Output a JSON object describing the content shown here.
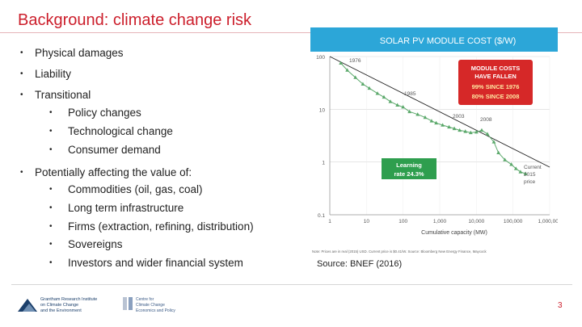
{
  "slide": {
    "title": "Background: climate change risk",
    "page_number": "3",
    "source": "Source: BNEF (2016)"
  },
  "bullets": [
    {
      "level": 1,
      "text": "Physical damages"
    },
    {
      "level": 1,
      "text": "Liability"
    },
    {
      "level": 1,
      "text": "Transitional"
    },
    {
      "level": 2,
      "text": "Policy changes"
    },
    {
      "level": 2,
      "text": "Technological change"
    },
    {
      "level": 2,
      "text": "Consumer demand"
    },
    {
      "level": 1,
      "text": "Potentially affecting the value of:"
    },
    {
      "level": 2,
      "text": "Commodities (oil, gas, coal)"
    },
    {
      "level": 2,
      "text": "Long term infrastructure"
    },
    {
      "level": 2,
      "text": "Firms (extraction, refining, distribution)"
    },
    {
      "level": 2,
      "text": "Sovereigns"
    },
    {
      "level": 2,
      "text": "Investors and wider financial system"
    }
  ],
  "figure": {
    "header": "SOLAR PV MODULE COST ($/W)",
    "header_bg": "#2ca6d8",
    "callout_lines": [
      "MODULE COSTS",
      "HAVE FALLEN",
      "99% SINCE 1976",
      "80% SINCE 2008"
    ],
    "callout_bg": "#d62828",
    "learning_lines": [
      "Learning",
      "rate 24.3%"
    ],
    "learning_bg": "#2e9e4e",
    "point_labels": [
      "1976",
      "1985",
      "2003",
      "2008",
      "Current",
      "2015",
      "price"
    ],
    "note": "Note: Prices are in real (2015) USD. Current price is $0.41/W. Source: Bloomberg New Energy Finance, Maycock",
    "series_color": "#5aa86a"
  },
  "chart_data": {
    "type": "scatter",
    "title": "SOLAR PV MODULE COST ($/W)",
    "xlabel": "Cumulative capacity (MW)",
    "ylabel": "",
    "xscale": "log",
    "yscale": "log",
    "xlim": [
      1,
      1000000
    ],
    "ylim": [
      0.1,
      100
    ],
    "x_ticks": [
      "1",
      "10",
      "100",
      "1,000",
      "10,000",
      "100,000",
      "1,000,000"
    ],
    "y_ticks": [
      "100",
      "10",
      "1",
      "0.1"
    ],
    "grid": true,
    "trendline": {
      "x": [
        1,
        1000000
      ],
      "y": [
        100,
        0.8
      ]
    },
    "series": [
      {
        "points": [
          [
            2,
            75
          ],
          [
            3,
            55
          ],
          [
            5,
            40
          ],
          [
            8,
            30
          ],
          [
            12,
            25
          ],
          [
            20,
            20
          ],
          [
            30,
            17
          ],
          [
            45,
            14
          ],
          [
            70,
            12
          ],
          [
            100,
            11
          ],
          [
            150,
            9
          ],
          [
            250,
            8
          ],
          [
            400,
            7
          ],
          [
            600,
            6
          ],
          [
            800,
            5.5
          ],
          [
            1200,
            5
          ],
          [
            1800,
            4.6
          ],
          [
            2500,
            4.3
          ],
          [
            3500,
            4.0
          ],
          [
            5000,
            3.8
          ],
          [
            7000,
            3.6
          ],
          [
            10000,
            3.7
          ],
          [
            14000,
            4.0
          ],
          [
            20000,
            3.4
          ],
          [
            30000,
            2.4
          ],
          [
            40000,
            1.5
          ],
          [
            60000,
            1.1
          ],
          [
            90000,
            0.9
          ],
          [
            120000,
            0.75
          ],
          [
            160000,
            0.65
          ],
          [
            220000,
            0.6
          ]
        ]
      }
    ],
    "annotations": [
      "1976",
      "1985",
      "2003",
      "2008",
      "Current 2015 price"
    ]
  },
  "logos": {
    "grantham": [
      "Grantham Research Institute",
      "on Climate Change",
      "and the Environment"
    ],
    "cccep": [
      "Centre for",
      "Climate Change",
      "Economics and Policy"
    ]
  }
}
